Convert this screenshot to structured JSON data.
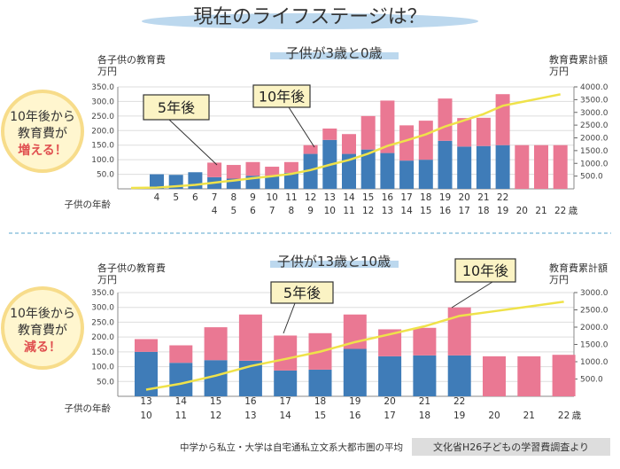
{
  "title": "現在のライフステージは？",
  "footer": {
    "note": "中学から私立・大学は自宅通私立文系大都市圏の平均",
    "source": "文化省H26子どもの学習費調査より"
  },
  "colors": {
    "older_child": "#3f7cb8",
    "younger_child": "#ea7893",
    "cumulative_line": "#efe24a",
    "title_ellipse": "#bcd8ee",
    "circle_fill": "#fff6cf",
    "circle_ring": "#f7dc8a",
    "accent_red": "#e05050"
  },
  "chart_data": [
    {
      "type": "bar",
      "stacked": true,
      "title": "子供が3歳と0歳",
      "ylabel_left": [
        "各子供の教育費",
        "万円"
      ],
      "ylabel_right": [
        "教育費累計額",
        "万円"
      ],
      "xlabel": "子供の年齢",
      "age_unit": "歳",
      "ylim_left": [
        0,
        350
      ],
      "ylim_right": [
        0,
        4000
      ],
      "left_ticks": [
        "50.0",
        "100.0",
        "150.0",
        "200.0",
        "250.0",
        "300.0",
        "350.0"
      ],
      "right_ticks": [
        "500.0",
        "1000.0",
        "1500.0",
        "2000.0",
        "2500.0",
        "3000.0",
        "3500.0",
        "4000.0"
      ],
      "grid": true,
      "categories_older": [
        "4",
        "5",
        "6",
        "7",
        "8",
        "9",
        "10",
        "11",
        "12",
        "13",
        "14",
        "15",
        "16",
        "17",
        "18",
        "19",
        "20",
        "21",
        "22",
        "",
        "",
        ""
      ],
      "categories_younger": [
        "",
        "",
        "",
        "4",
        "5",
        "6",
        "7",
        "8",
        "9",
        "10",
        "11",
        "12",
        "13",
        "14",
        "15",
        "16",
        "17",
        "18",
        "19",
        "20",
        "21",
        "22"
      ],
      "series": [
        {
          "values": [
            50,
            48,
            57,
            40,
            35,
            45,
            45,
            55,
            120,
            168,
            120,
            135,
            123,
            97,
            100,
            165,
            145,
            147,
            150,
            0,
            0,
            0
          ]
        },
        {
          "values": [
            0,
            0,
            0,
            50,
            47,
            47,
            31,
            37,
            30,
            39,
            68,
            115,
            180,
            121,
            134,
            145,
            98,
            97,
            175,
            150,
            150,
            150
          ]
        }
      ],
      "cumulative": [
        50,
        98,
        155,
        245,
        327,
        419,
        495,
        587,
        737,
        944,
        1132,
        1382,
        1685,
        1903,
        2137,
        2447,
        2690,
        2934,
        3259,
        3409,
        3559,
        3709
      ],
      "callouts": [
        {
          "label": "5年後",
          "column": 3
        },
        {
          "label": "10年後",
          "column": 8
        }
      ],
      "side_badge": [
        "10年後から",
        "教育費が",
        "増える！"
      ]
    },
    {
      "type": "bar",
      "stacked": true,
      "title": "子供が13歳と10歳",
      "ylabel_left": [
        "各子供の教育費",
        "万円"
      ],
      "ylabel_right": [
        "教育費累計額",
        "万円"
      ],
      "xlabel": "子供の年齢",
      "age_unit": "歳",
      "ylim_left": [
        0,
        350
      ],
      "ylim_right": [
        0,
        3000
      ],
      "left_ticks": [
        "50.0",
        "100.0",
        "150.0",
        "200.0",
        "250.0",
        "300.0",
        "350.0"
      ],
      "right_ticks": [
        "500.0",
        "1000.0",
        "1500.0",
        "2000.0",
        "2500.0",
        "3000.0"
      ],
      "grid": true,
      "categories_older": [
        "13",
        "14",
        "15",
        "16",
        "17",
        "18",
        "19",
        "20",
        "21",
        "22",
        "",
        "",
        ""
      ],
      "categories_younger": [
        "10",
        "11",
        "12",
        "13",
        "14",
        "15",
        "16",
        "17",
        "18",
        "19",
        "20",
        "21",
        "22"
      ],
      "series": [
        {
          "values": [
            150,
            113,
            122,
            120,
            87,
            90,
            160,
            135,
            138,
            138,
            0,
            0,
            0
          ]
        },
        {
          "values": [
            43,
            59,
            111,
            156,
            118,
            123,
            116,
            91,
            93,
            162,
            135,
            135,
            140
          ]
        }
      ],
      "cumulative": [
        193,
        365,
        598,
        874,
        1079,
        1292,
        1568,
        1794,
        2025,
        2325,
        2460,
        2595,
        2735
      ],
      "callouts": [
        {
          "label": "5年後",
          "column": 4
        },
        {
          "label": "10年後",
          "column": 9
        }
      ],
      "side_badge": [
        "10年後から",
        "教育費が",
        "減る！"
      ]
    }
  ]
}
